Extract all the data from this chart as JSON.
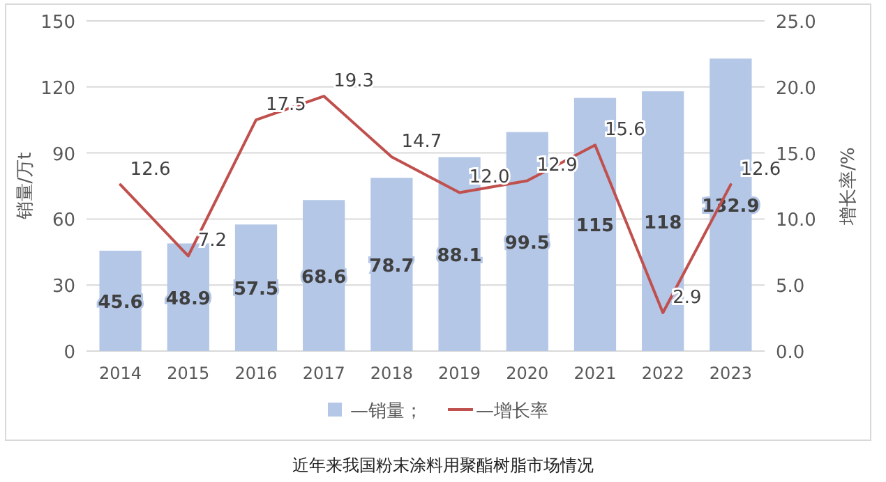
{
  "chart_data": {
    "type": "bar",
    "title": "近年来我国粉末涂料用聚酯树脂市场情况",
    "ylabel": "销量/万t",
    "y2label": "增长率/%",
    "categories": [
      "2014",
      "2015",
      "2016",
      "2017",
      "2018",
      "2019",
      "2020",
      "2021",
      "2022",
      "2023"
    ],
    "series": [
      {
        "name": "—销量；",
        "color": "#b4c7e7",
        "values": [
          45.6,
          48.9,
          57.5,
          68.6,
          78.7,
          88.1,
          99.5,
          115,
          118,
          132.9
        ]
      },
      {
        "name": "—增长率",
        "type": "line",
        "axis": "y2",
        "color": "#c0504d",
        "values": [
          12.6,
          7.2,
          17.5,
          19.3,
          14.7,
          12.0,
          12.9,
          15.6,
          2.9,
          12.6
        ],
        "value_labels": [
          "12.6",
          "7.2",
          "17.5",
          "19.3",
          "14.7",
          "12.0",
          "12.9",
          "15.6",
          "2.9",
          "12.6"
        ]
      }
    ],
    "ylim": [
      0,
      150
    ],
    "yticks": [
      0,
      30,
      60,
      90,
      120,
      150
    ],
    "y2lim": [
      0,
      25
    ],
    "y2ticks": [
      {
        "value": 0,
        "label": "0.0"
      },
      {
        "value": 5,
        "label": "5.0"
      },
      {
        "value": 10,
        "label": "10.0"
      },
      {
        "value": 15,
        "label": "15.0"
      },
      {
        "value": 20,
        "label": "20.0"
      },
      {
        "value": 25,
        "label": "25.0"
      }
    ],
    "grid": "y",
    "legend": "bottom",
    "data_labels": true
  }
}
